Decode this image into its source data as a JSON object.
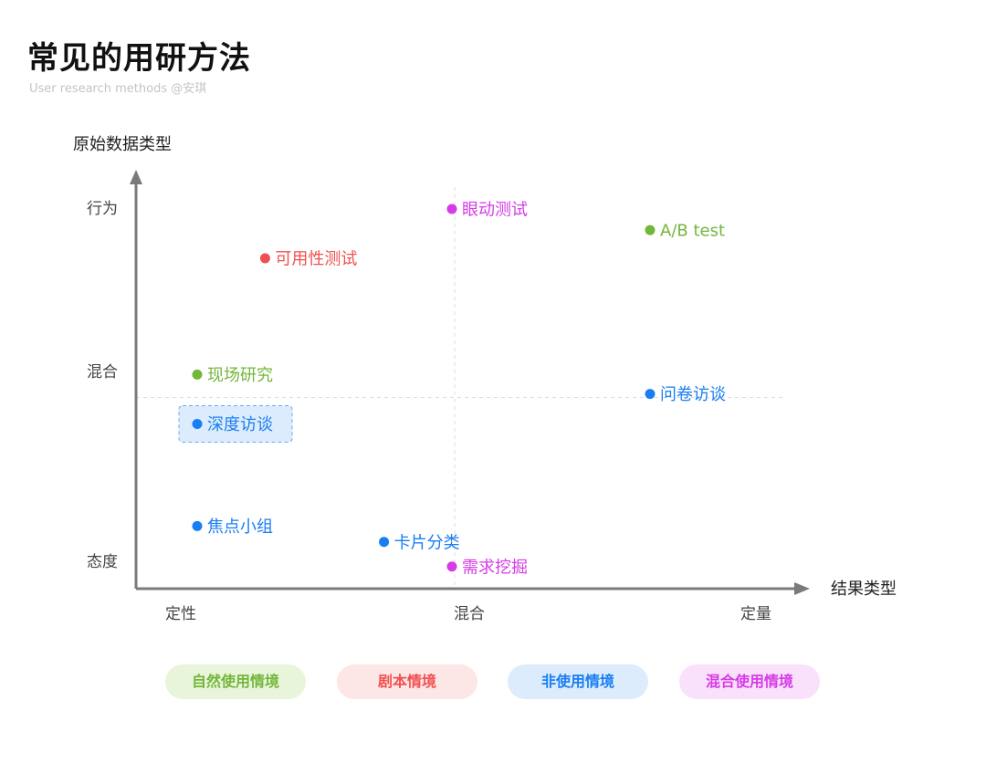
{
  "header": {
    "title": "常见的用研方法",
    "subtitle": "User research methods @安琪"
  },
  "chart_data": {
    "type": "scatter",
    "xlabel": "结果类型",
    "ylabel": "原始数据类型",
    "x_ticks": [
      {
        "pos": 0,
        "label": "定性"
      },
      {
        "pos": 1,
        "label": "混合"
      },
      {
        "pos": 2,
        "label": "定量"
      }
    ],
    "y_ticks": [
      {
        "pos": 0,
        "label": "态度"
      },
      {
        "pos": 1,
        "label": "混合"
      },
      {
        "pos": 2,
        "label": "行为"
      }
    ],
    "xlim": [
      0,
      2
    ],
    "ylim": [
      0,
      2
    ],
    "center_guides": true,
    "points": [
      {
        "label": "眼动测试",
        "x": 1.0,
        "y": 2.0,
        "category": "mixed"
      },
      {
        "label": "A/B test",
        "x": 1.7,
        "y": 1.88,
        "category": "natural"
      },
      {
        "label": "可用性测试",
        "x": 0.34,
        "y": 1.72,
        "category": "scripted"
      },
      {
        "label": "现场研究",
        "x": 0.1,
        "y": 1.06,
        "category": "natural"
      },
      {
        "label": "问卷访谈",
        "x": 1.7,
        "y": 0.95,
        "category": "non"
      },
      {
        "label": "深度访谈",
        "x": 0.1,
        "y": 0.78,
        "category": "non",
        "highlight": true
      },
      {
        "label": "焦点小组",
        "x": 0.1,
        "y": 0.2,
        "category": "non"
      },
      {
        "label": "卡片分类",
        "x": 0.76,
        "y": 0.11,
        "category": "non"
      },
      {
        "label": "需求挖掘",
        "x": 1.0,
        "y": -0.03,
        "category": "mixed"
      }
    ],
    "legend_placement": "bottom",
    "legend": [
      {
        "key": "natural",
        "label": "自然使用情境"
      },
      {
        "key": "scripted",
        "label": "剧本情境"
      },
      {
        "key": "non",
        "label": "非使用情境"
      },
      {
        "key": "mixed",
        "label": "混合使用情境"
      }
    ]
  },
  "colors": {
    "natural": "#74b63a",
    "scripted": "#f0504f",
    "non": "#1a7ef2",
    "mixed": "#d63be6",
    "natural_bg": "#e9f5db",
    "scripted_bg": "#fde6e6",
    "non_bg": "#dcecfd",
    "mixed_bg": "#f9e1fb",
    "axis": "#7a7a7a",
    "guide": "#dedede",
    "text": "#222222"
  }
}
